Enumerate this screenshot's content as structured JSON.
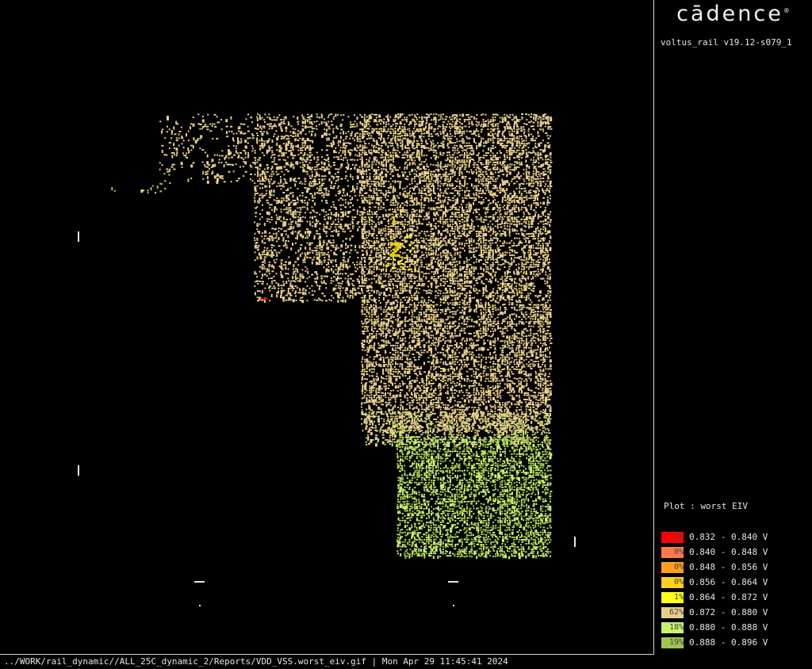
{
  "logo": {
    "text": "cādence",
    "reg": "®"
  },
  "version": "voltus_rail v19.12-s079_1",
  "plot_title": "Plot : worst EIV",
  "status_bar": "../WORK/rail_dynamic//ALL_25C_dynamic_2/Reports/VDD_VSS.worst_eiv.gif | Mon Apr 29 11:45:41 2024",
  "chip_labels": [
    "1",
    "2"
  ],
  "colors": {
    "background": "#000000",
    "bin_colors": [
      "#ff0000",
      "#ff7a4a",
      "#ff9f1a",
      "#ffd21f",
      "#ffff1a",
      "#e8cf8a",
      "#c8f26a",
      "#9fc64a"
    ]
  },
  "chart_data": {
    "type": "heatmap",
    "title": "Plot : worst EIV",
    "unit": "V",
    "legend": [
      {
        "range": "0.832 - 0.840 V",
        "low": 0.832,
        "high": 0.84,
        "percent": "0%",
        "color": "#ff0000"
      },
      {
        "range": "0.840 - 0.848 V",
        "low": 0.84,
        "high": 0.848,
        "percent": "0%",
        "color": "#ff7a4a"
      },
      {
        "range": "0.848 - 0.856 V",
        "low": 0.848,
        "high": 0.856,
        "percent": "0%",
        "color": "#ff9f1a"
      },
      {
        "range": "0.856 - 0.864 V",
        "low": 0.856,
        "high": 0.864,
        "percent": "0%",
        "color": "#ffd21f"
      },
      {
        "range": "0.864 - 0.872 V",
        "low": 0.864,
        "high": 0.872,
        "percent": "1%",
        "color": "#ffff1a"
      },
      {
        "range": "0.872 - 0.880 V",
        "low": 0.872,
        "high": 0.88,
        "percent": "62%",
        "color": "#e8cf8a"
      },
      {
        "range": "0.880 - 0.888 V",
        "low": 0.88,
        "high": 0.888,
        "percent": "18%",
        "color": "#c8f26a"
      },
      {
        "range": "0.888 - 0.896 V",
        "low": 0.888,
        "high": 0.896,
        "percent": "19%",
        "color": "#9fc64a"
      }
    ],
    "legend_placement": "bottom-right",
    "grid": false
  }
}
